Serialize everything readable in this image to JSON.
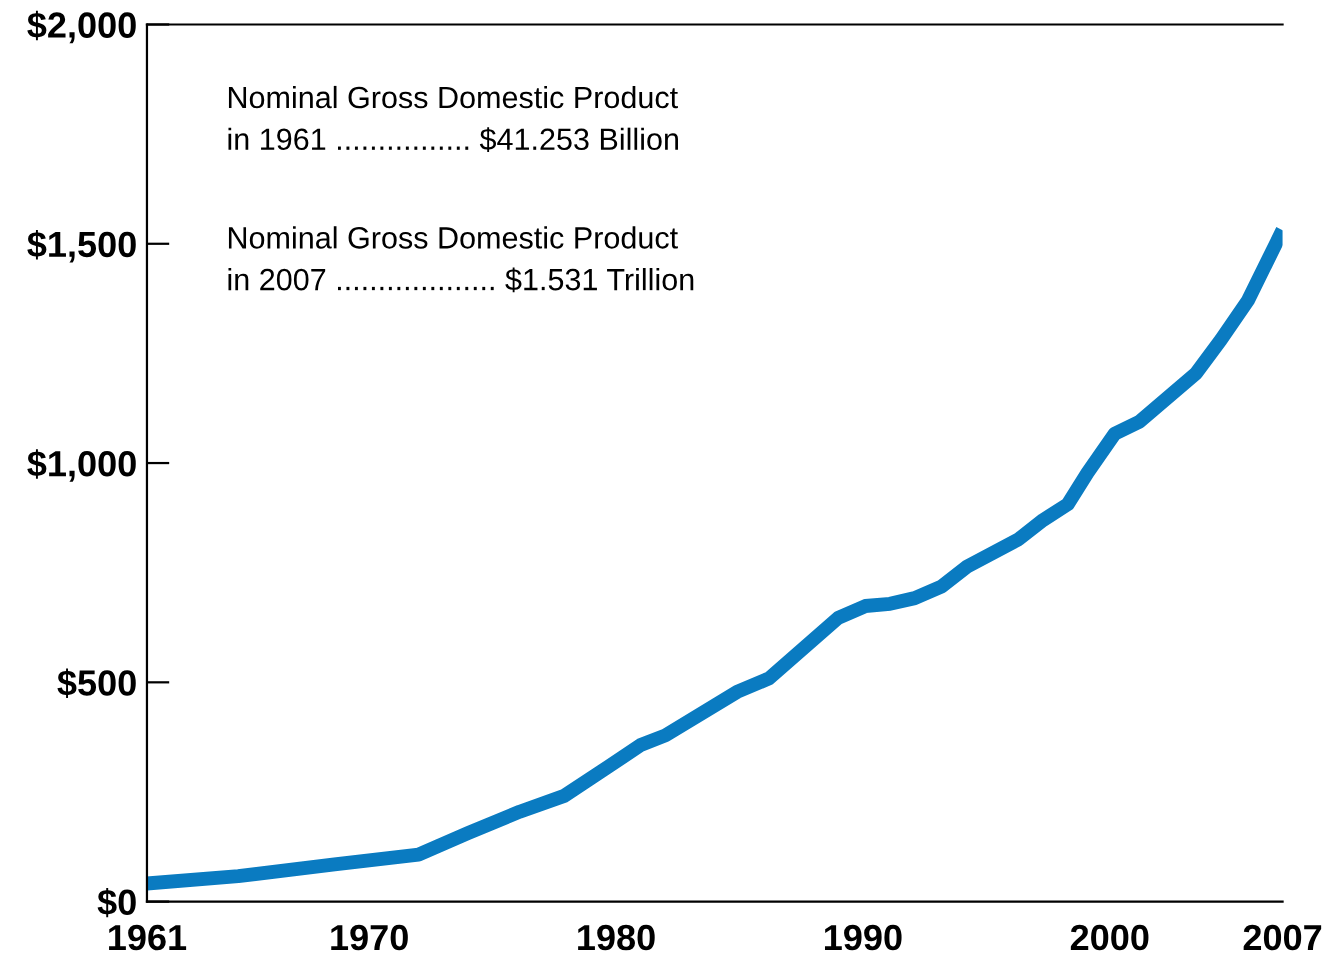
{
  "chart_data": {
    "type": "line",
    "x": [
      1961,
      1964.7,
      1968.6,
      1972,
      1974,
      1976.1,
      1977.9,
      1979.7,
      1981,
      1982,
      1984.9,
      1986.2,
      1989,
      1990.1,
      1991.1,
      1992.1,
      1993.2,
      1994.2,
      1996.3,
      1997.3,
      1998.3,
      1999.1,
      2000.2,
      2001.2,
      2003.5,
      2004.5,
      2005.6,
      2007
    ],
    "series": [
      {
        "color": "#0a7bc1",
        "values": [
          41.253,
          58,
          85,
          107,
          156,
          205,
          241,
          308,
          357,
          379,
          478,
          509,
          647,
          674,
          679,
          692,
          719,
          763,
          826,
          870,
          906,
          978,
          1067,
          1094,
          1205,
          1281,
          1371,
          1531
        ]
      }
    ],
    "xlim": [
      1961,
      2007
    ],
    "xticks": [
      1961,
      1970,
      1980,
      1990,
      2000,
      2007
    ],
    "ylim": [
      0,
      2000
    ],
    "yticks": [
      {
        "value": 0,
        "label": "$0"
      },
      {
        "value": 500,
        "label": "$500"
      },
      {
        "value": 1000,
        "label": "$1,000"
      },
      {
        "value": 1500,
        "label": "$1,500"
      },
      {
        "value": 2000,
        "label": "$2,000"
      }
    ],
    "annotations": [
      "Nominal Gross Domestic Product\nin 1961 ................ $41.253 Billion",
      "Nominal Gross Domestic Product\nin 2007 ................... $1.531 Trillion"
    ],
    "grid": false,
    "legend": false,
    "marker": "none",
    "line_style": "solid"
  }
}
